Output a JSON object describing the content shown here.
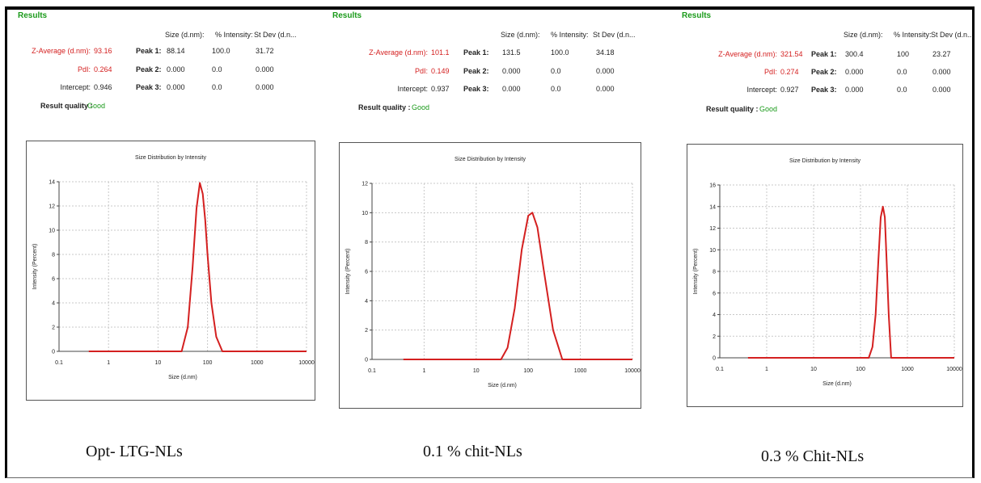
{
  "panels": [
    {
      "results_title": "Results",
      "columns": [
        "Size (d.nm):",
        "% Intensity:",
        "St Dev (d.n..."
      ],
      "z_average_label": "Z-Average (d.nm):",
      "z_average_value": "93.16",
      "pdi_label": "PdI:",
      "pdi_value": "0.264",
      "intercept_label": "Intercept:",
      "intercept_value": "0.946",
      "peaks": [
        {
          "label": "Peak 1:",
          "size": "88.14",
          "intensity": "100.0",
          "stdev": "31.72"
        },
        {
          "label": "Peak 2:",
          "size": "0.000",
          "intensity": "0.0",
          "stdev": "0.000"
        },
        {
          "label": "Peak 3:",
          "size": "0.000",
          "intensity": "0.0",
          "stdev": "0.000"
        }
      ],
      "result_quality_label": "Result quality :",
      "result_quality_value": "Good",
      "caption": "Opt- LTG-NLs"
    },
    {
      "results_title": "Results",
      "columns": [
        "Size (d.nm):",
        "% Intensity:",
        "St Dev (d.n..."
      ],
      "z_average_label": "Z-Average (d.nm):",
      "z_average_value": "101.1",
      "pdi_label": "PdI:",
      "pdi_value": "0.149",
      "intercept_label": "Intercept:",
      "intercept_value": "0.937",
      "peaks": [
        {
          "label": "Peak 1:",
          "size": "131.5",
          "intensity": "100.0",
          "stdev": "34.18"
        },
        {
          "label": "Peak 2:",
          "size": "0.000",
          "intensity": "0.0",
          "stdev": "0.000"
        },
        {
          "label": "Peak 3:",
          "size": "0.000",
          "intensity": "0.0",
          "stdev": "0.000"
        }
      ],
      "result_quality_label": "Result quality :",
      "result_quality_value": "Good",
      "caption": "0.1 % chit-NLs"
    },
    {
      "results_title": "Results",
      "columns": [
        "Size (d.nm):",
        "% Intensity:",
        "St Dev (d.n..."
      ],
      "z_average_label": "Z-Average (d.nm):",
      "z_average_value": "321.54",
      "pdi_label": "PdI:",
      "pdi_value": "0.274",
      "intercept_label": "Intercept:",
      "intercept_value": "0.927",
      "peaks": [
        {
          "label": "Peak 1:",
          "size": "300.4",
          "intensity": "100",
          "stdev": "23.27"
        },
        {
          "label": "Peak 2:",
          "size": "0.000",
          "intensity": "0.0",
          "stdev": "0.000"
        },
        {
          "label": "Peak 3:",
          "size": "0.000",
          "intensity": "0.0",
          "stdev": "0.000"
        }
      ],
      "result_quality_label": "Result quality :",
      "result_quality_value": "Good",
      "caption": "0.3 % Chit-NLs"
    }
  ],
  "chart_data": [
    {
      "type": "line",
      "title": "Size Distribution by Intensity",
      "xlabel": "Size (d.nm)",
      "ylabel": "Intensity (Percent)",
      "x_scale": "log",
      "xlim": [
        0.1,
        10000
      ],
      "x_ticks": [
        "0.1",
        "1",
        "10",
        "100",
        "1000",
        "10000"
      ],
      "ylim": [
        0,
        14
      ],
      "y_ticks": [
        "0",
        "2",
        "4",
        "6",
        "8",
        "10",
        "12",
        "14"
      ],
      "grid": true,
      "series_color": "#d42020",
      "series": [
        {
          "x": [
            0.4,
            30,
            40,
            50,
            60,
            70,
            80,
            90,
            100,
            120,
            150,
            200,
            10000
          ],
          "y": [
            0,
            0,
            2.0,
            7.0,
            11.8,
            13.9,
            13.0,
            10.8,
            8.0,
            4.0,
            1.2,
            0,
            0
          ]
        }
      ]
    },
    {
      "type": "line",
      "title": "Size Distribution by Intensity",
      "xlabel": "Size (d.nm)",
      "ylabel": "Intensity (Percent)",
      "x_scale": "log",
      "xlim": [
        0.1,
        10000
      ],
      "x_ticks": [
        "0.1",
        "1",
        "10",
        "100",
        "1000",
        "10000"
      ],
      "ylim": [
        0,
        12
      ],
      "y_ticks": [
        "0",
        "2",
        "4",
        "6",
        "8",
        "10",
        "12"
      ],
      "grid": true,
      "series_color": "#d42020",
      "series": [
        {
          "x": [
            0.4,
            30,
            40,
            55,
            75,
            100,
            120,
            150,
            200,
            300,
            450,
            10000
          ],
          "y": [
            0,
            0,
            0.8,
            3.5,
            7.5,
            9.8,
            10.0,
            9.0,
            6.0,
            2.0,
            0,
            0
          ]
        }
      ]
    },
    {
      "type": "line",
      "title": "Size Distribution by Intensity",
      "xlabel": "Size (d.nm)",
      "ylabel": "Intensity (Percent)",
      "x_scale": "log",
      "xlim": [
        0.1,
        10000
      ],
      "x_ticks": [
        "0.1",
        "1",
        "10",
        "100",
        "1000",
        "10000"
      ],
      "ylim": [
        0,
        16
      ],
      "y_ticks": [
        "0",
        "2",
        "4",
        "6",
        "8",
        "10",
        "12",
        "14",
        "16"
      ],
      "grid": true,
      "series_color": "#d42020",
      "series": [
        {
          "x": [
            0.4,
            150,
            180,
            210,
            240,
            270,
            300,
            330,
            360,
            400,
            450,
            10000
          ],
          "y": [
            0,
            0,
            1.0,
            4.0,
            9.0,
            13.0,
            14.0,
            13.0,
            9.0,
            4.0,
            0,
            0
          ]
        }
      ]
    }
  ]
}
